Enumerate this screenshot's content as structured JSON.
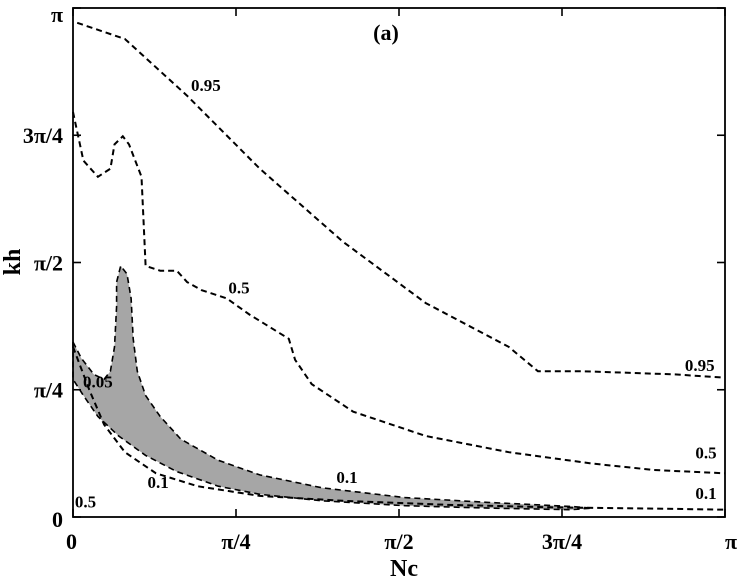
{
  "chart_data": {
    "type": "contour",
    "panel_label": "(a)",
    "xlabel": "Nc",
    "ylabel": "kh",
    "xlim": [
      0,
      3.14159
    ],
    "ylim": [
      0,
      3.14159
    ],
    "x_ticks": [
      {
        "value": 0,
        "label": "0"
      },
      {
        "value": 0.7854,
        "label": "π/4"
      },
      {
        "value": 1.5708,
        "label": "π/2"
      },
      {
        "value": 2.3562,
        "label": "3π/4"
      },
      {
        "value": 3.14159,
        "label": "π"
      }
    ],
    "y_ticks": [
      {
        "value": 0,
        "label": "0"
      },
      {
        "value": 0.7854,
        "label": "π/4"
      },
      {
        "value": 1.5708,
        "label": "π/2"
      },
      {
        "value": 2.3562,
        "label": "3π/4"
      },
      {
        "value": 3.14159,
        "label": "π"
      }
    ],
    "contours": [
      {
        "level": "0.95",
        "points": [
          [
            0.02,
            3.05
          ],
          [
            0.25,
            2.95
          ],
          [
            0.55,
            2.6
          ],
          [
            0.9,
            2.15
          ],
          [
            1.3,
            1.7
          ],
          [
            1.7,
            1.32
          ],
          [
            2.1,
            1.05
          ],
          [
            2.24,
            0.9
          ],
          [
            2.45,
            0.9
          ],
          [
            2.9,
            0.88
          ],
          [
            3.14,
            0.86
          ]
        ]
      },
      {
        "level": "0.5",
        "points": [
          [
            0,
            2.5
          ],
          [
            0.05,
            2.2
          ],
          [
            0.12,
            2.1
          ],
          [
            0.18,
            2.15
          ],
          [
            0.2,
            2.3
          ],
          [
            0.24,
            2.35
          ],
          [
            0.27,
            2.3
          ],
          [
            0.33,
            2.1
          ],
          [
            0.34,
            1.82
          ],
          [
            0.35,
            1.55
          ],
          [
            0.42,
            1.52
          ],
          [
            0.5,
            1.52
          ],
          [
            0.55,
            1.45
          ],
          [
            0.62,
            1.4
          ],
          [
            0.74,
            1.35
          ],
          [
            0.85,
            1.25
          ],
          [
            1.04,
            1.1
          ],
          [
            1.07,
            0.97
          ],
          [
            1.15,
            0.82
          ],
          [
            1.35,
            0.65
          ],
          [
            1.7,
            0.5
          ],
          [
            2.1,
            0.4
          ],
          [
            2.5,
            0.33
          ],
          [
            2.8,
            0.29
          ],
          [
            3.14,
            0.27
          ]
        ]
      },
      {
        "level": "0.1",
        "points": [
          [
            0,
            1.05
          ],
          [
            0.08,
            0.78
          ],
          [
            0.15,
            0.57
          ],
          [
            0.25,
            0.4
          ],
          [
            0.4,
            0.27
          ],
          [
            0.6,
            0.19
          ],
          [
            0.9,
            0.13
          ],
          [
            1.3,
            0.1
          ],
          [
            1.8,
            0.075
          ],
          [
            2.3,
            0.06
          ],
          [
            2.9,
            0.05
          ],
          [
            3.14,
            0.045
          ]
        ]
      }
    ],
    "shaded_region": {
      "description_free": true,
      "level": "0.05",
      "color": "#a6a6a6",
      "points": [
        [
          0,
          1.08
        ],
        [
          0.04,
          0.98
        ],
        [
          0.1,
          0.88
        ],
        [
          0.15,
          0.85
        ],
        [
          0.18,
          0.9
        ],
        [
          0.2,
          1.05
        ],
        [
          0.21,
          1.3
        ],
        [
          0.21,
          1.45
        ],
        [
          0.23,
          1.55
        ],
        [
          0.26,
          1.5
        ],
        [
          0.28,
          1.35
        ],
        [
          0.29,
          1.1
        ],
        [
          0.31,
          0.9
        ],
        [
          0.35,
          0.75
        ],
        [
          0.42,
          0.62
        ],
        [
          0.52,
          0.48
        ],
        [
          0.7,
          0.35
        ],
        [
          0.9,
          0.26
        ],
        [
          1.2,
          0.18
        ],
        [
          1.6,
          0.12
        ],
        [
          2.0,
          0.09
        ],
        [
          2.4,
          0.065
        ],
        [
          2.5,
          0.055
        ],
        [
          2.4,
          0.045
        ],
        [
          2.0,
          0.055
        ],
        [
          1.6,
          0.07
        ],
        [
          1.2,
          0.1
        ],
        [
          0.9,
          0.14
        ],
        [
          0.7,
          0.19
        ],
        [
          0.5,
          0.28
        ],
        [
          0.35,
          0.38
        ],
        [
          0.22,
          0.5
        ],
        [
          0.12,
          0.62
        ],
        [
          0.05,
          0.75
        ],
        [
          0,
          0.85
        ]
      ]
    },
    "labels": [
      {
        "text": "0.95",
        "x": 0.64,
        "y": 2.63
      },
      {
        "text": "0.5",
        "x": 0.8,
        "y": 1.38
      },
      {
        "text": "0.05",
        "x": 0.12,
        "y": 0.8
      },
      {
        "text": "0.1",
        "x": 0.41,
        "y": 0.18
      },
      {
        "text": "0.1",
        "x": 1.32,
        "y": 0.21
      },
      {
        "text": "0.5",
        "x": 0.06,
        "y": 0.06
      },
      {
        "text": "0.95",
        "x": 3.02,
        "y": 0.9
      },
      {
        "text": "0.5",
        "x": 3.05,
        "y": 0.36
      },
      {
        "text": "0.1",
        "x": 3.05,
        "y": 0.11
      }
    ]
  }
}
